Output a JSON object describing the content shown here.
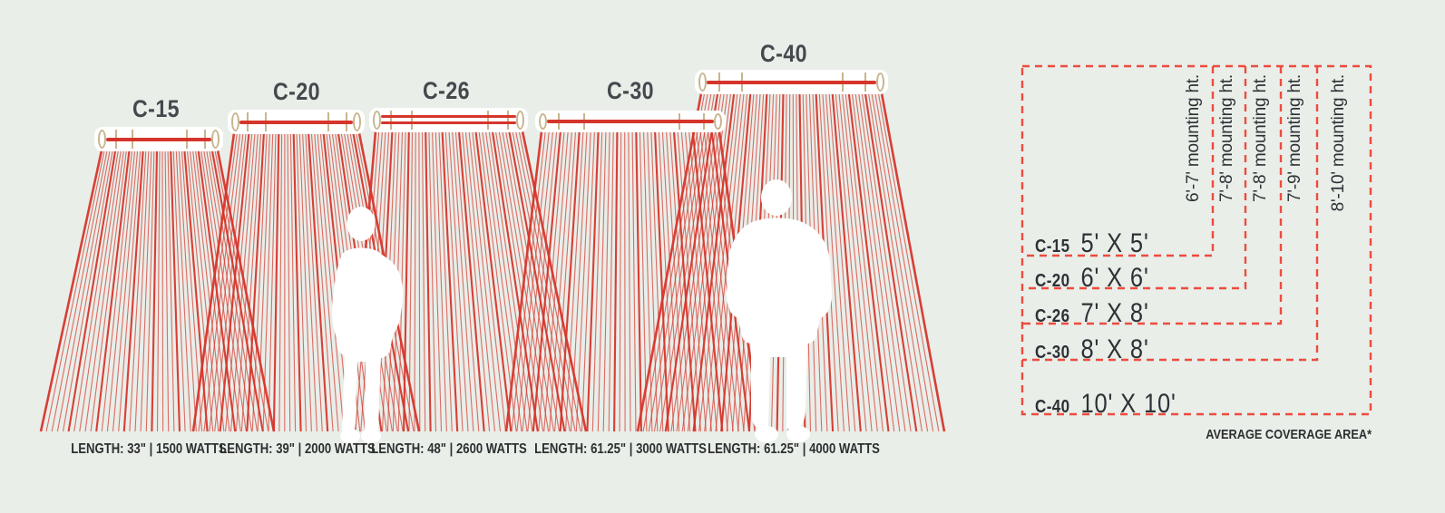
{
  "heaters": [
    {
      "model": "C-15",
      "spec": "LENGTH: 33\" | 1500 WATTS",
      "coverage": "5' X 5'",
      "mounting": "6'-7' mounting ht."
    },
    {
      "model": "C-20",
      "spec": "LENGTH: 39\" | 2000 WATTS",
      "coverage": "6' X 6'",
      "mounting": "7'-8' mounting ht."
    },
    {
      "model": "C-26",
      "spec": "LENGTH: 48\" | 2600 WATTS",
      "coverage": "7' X 8'",
      "mounting": "7'-8' mounting ht."
    },
    {
      "model": "C-30",
      "spec": "LENGTH: 61.25\" | 3000 WATTS",
      "coverage": "8' X 8'",
      "mounting": "7'-9' mounting ht."
    },
    {
      "model": "C-40",
      "spec": "LENGTH: 61.25\" | 4000 WATTS",
      "coverage": "10' X 10'",
      "mounting": "8'-10' mounting ht."
    }
  ],
  "coverage_caption": "AVERAGE COVERAGE AREA*",
  "colors": {
    "background": "#e9eee9",
    "ray_red": "#d6352b",
    "dash_red": "#ee4b3f",
    "unit_tan": "#c8b58f",
    "title_gray": "#45494d",
    "text_dark": "#2e3236"
  }
}
